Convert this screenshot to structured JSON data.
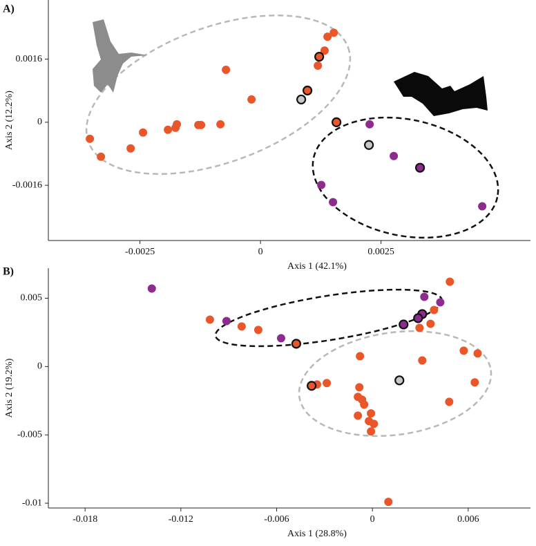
{
  "chart_data": [
    {
      "type": "scatter",
      "panel_label": "A)",
      "x_label": "Axis 1 (42.1%)",
      "y_label": "Axis 2 (12.2%)",
      "xlim": [
        -0.0044,
        0.0056
      ],
      "ylim": [
        -0.003,
        0.0031
      ],
      "xticks": [
        -0.0025,
        0,
        0.0025
      ],
      "yticks": [
        -0.0016,
        0,
        0.0016
      ],
      "series": [
        {
          "color": "#e8562a",
          "edgecolor": null,
          "x": [
            0.00152,
            0.00139,
            0.00133,
            0.00119,
            -0.000716,
            -0.000186,
            -0.000831,
            -0.001232,
            -0.001289,
            -0.001734,
            -0.001762,
            -0.00192,
            -0.002436,
            -0.002693,
            -0.003539,
            -0.003309
          ],
          "values": [
            0.00227,
            0.002168,
            0.001818,
            0.001434,
            0.001329,
            0.000577,
            -5.2e-05,
            -7e-05,
            -7e-05,
            -5.2e-05,
            -0.00014,
            -0.000192,
            -0.000262,
            -0.000664,
            -0.00042,
            -0.000874
          ]
        },
        {
          "color": "#e8562a",
          "edgecolor": "#111111",
          "x": [
            0.001218,
            0.000974,
            0.001576
          ],
          "values": [
            0.001661,
            0.000804,
            0
          ]
        },
        {
          "color": "#c8c8c8",
          "edgecolor": "#111111",
          "x": [
            0.000845,
            0.002249
          ],
          "values": [
            0.000577,
            -0.000577
          ]
        },
        {
          "color": "#8e2b8e",
          "edgecolor": null,
          "x": [
            0.002264,
            0.002765,
            0.001261,
            0.001504,
            0.004599
          ],
          "values": [
            -5.2e-05,
            -0.000857,
            -0.001591,
            -0.002028,
            -0.002133
          ]
        },
        {
          "color": "#8e2b8e",
          "edgecolor": "#111111",
          "x": [
            0.003309
          ],
          "values": [
            -0.001154
          ]
        }
      ]
    },
    {
      "type": "scatter",
      "panel_label": "B)",
      "x_label": "Axis 1 (28.8%)",
      "y_label": "Axis 2 (19.2%)",
      "xlim": [
        -0.0203,
        0.0099
      ],
      "ylim": [
        -0.01035,
        0.0072
      ],
      "xticks": [
        -0.018,
        -0.012,
        -0.006,
        0,
        0.006
      ],
      "yticks": [
        -0.01,
        -0.005,
        0,
        0.005
      ],
      "series": [
        {
          "color": "#e8562a",
          "edgecolor": null,
          "x": [
            0.00485,
            -0.01018,
            -0.00819,
            -0.00715,
            0.00386,
            0.00364,
            0.00295,
            0.00572,
            0.00659,
            0.00312,
            -0.00078,
            -0.00286,
            -0.00347,
            -0.00082,
            -0.00091,
            -0.00065,
            -0.00052,
            -9e-05,
            -0.00091,
            -0.00022,
            9e-05,
            -9e-05,
            0.00641,
            0.00481,
            0.001
          ],
          "values": [
            0.00621,
            0.00343,
            0.00293,
            0.00268,
            0.00414,
            0.00313,
            0.00283,
            0.00116,
            0.00096,
            0.00045,
            0.00076,
            -0.00121,
            -0.00131,
            -0.00152,
            -0.00222,
            -0.00242,
            -0.00278,
            -0.00343,
            -0.00359,
            -0.00399,
            -0.00419,
            -0.00475,
            -0.00116,
            -0.00258,
            -0.0099
          ]
        },
        {
          "color": "#e8562a",
          "edgecolor": "#111111",
          "x": [
            -0.00477,
            -0.00381
          ],
          "values": [
            0.00167,
            -0.00141
          ]
        },
        {
          "color": "#c8c8c8",
          "edgecolor": "#111111",
          "x": [
            0.00169
          ],
          "values": [
            -0.00101
          ]
        },
        {
          "color": "#8e2b8e",
          "edgecolor": null,
          "x": [
            -0.01382,
            -0.00914,
            -0.00572,
            0.00325,
            0.00425
          ],
          "values": [
            0.00571,
            0.00333,
            0.00207,
            0.0051,
            0.0047
          ]
        },
        {
          "color": "#8e2b8e",
          "edgecolor": "#111111",
          "x": [
            0.00195,
            0.00312,
            0.00286
          ],
          "values": [
            0.00308,
            0.00384,
            0.00354
          ]
        }
      ]
    }
  ]
}
